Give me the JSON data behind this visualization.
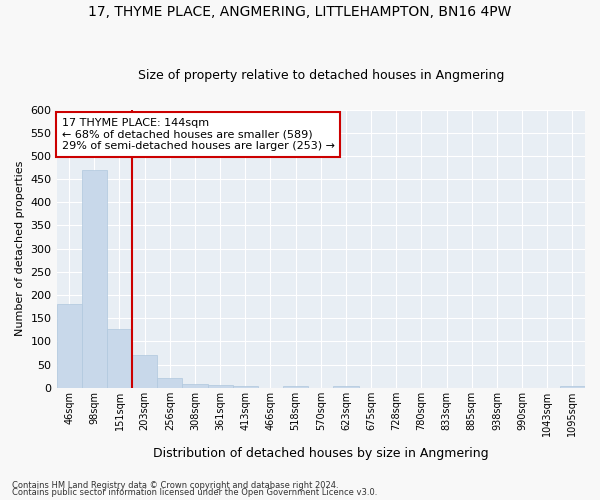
{
  "title": "17, THYME PLACE, ANGMERING, LITTLEHAMPTON, BN16 4PW",
  "subtitle": "Size of property relative to detached houses in Angmering",
  "xlabel": "Distribution of detached houses by size in Angmering",
  "ylabel": "Number of detached properties",
  "bar_color": "#c8d8ea",
  "bar_edge_color": "#b0c8de",
  "vline_color": "#cc0000",
  "vline_x_idx": 2,
  "annotation_text": "17 THYME PLACE: 144sqm\n← 68% of detached houses are smaller (589)\n29% of semi-detached houses are larger (253) →",
  "annotation_box_color": "white",
  "annotation_edge_color": "#cc0000",
  "bins": [
    "46sqm",
    "98sqm",
    "151sqm",
    "203sqm",
    "256sqm",
    "308sqm",
    "361sqm",
    "413sqm",
    "466sqm",
    "518sqm",
    "570sqm",
    "623sqm",
    "675sqm",
    "728sqm",
    "780sqm",
    "833sqm",
    "885sqm",
    "938sqm",
    "990sqm",
    "1043sqm",
    "1095sqm"
  ],
  "values": [
    180,
    470,
    127,
    70,
    20,
    8,
    5,
    4,
    0,
    4,
    0,
    4,
    0,
    0,
    0,
    0,
    0,
    0,
    0,
    0,
    4
  ],
  "ylim": [
    0,
    600
  ],
  "yticks": [
    0,
    50,
    100,
    150,
    200,
    250,
    300,
    350,
    400,
    450,
    500,
    550,
    600
  ],
  "footer1": "Contains HM Land Registry data © Crown copyright and database right 2024.",
  "footer2": "Contains public sector information licensed under the Open Government Licence v3.0.",
  "fig_bg_color": "#f8f8f8",
  "ax_bg_color": "#e8eef4",
  "grid_color": "#ffffff"
}
